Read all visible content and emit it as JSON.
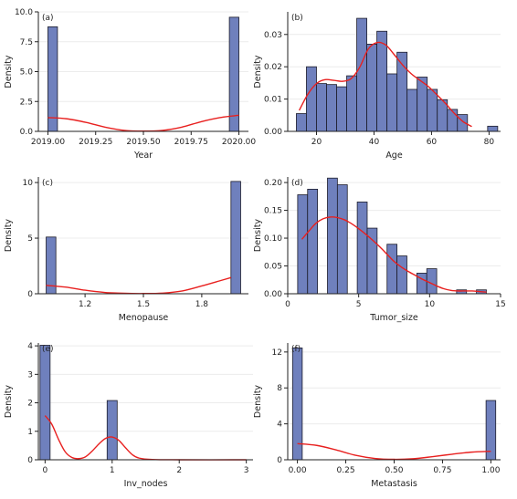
{
  "chart_data": [
    {
      "id": "a",
      "tag": "(a)",
      "type": "bar",
      "xlabel": "Year",
      "ylabel": "Density",
      "xlim": [
        2018.95,
        2020.05
      ],
      "ylim": [
        0,
        10
      ],
      "xticks": [
        2019.0,
        2019.25,
        2019.5,
        2019.75,
        2020.0
      ],
      "xtick_labels": [
        "2019.00",
        "2019.25",
        "2019.50",
        "2019.75",
        "2020.00"
      ],
      "yticks": [
        0,
        2.5,
        5,
        7.5,
        10
      ],
      "ytick_labels": [
        "0.0",
        "2.5",
        "5.0",
        "7.5",
        "10.0"
      ],
      "bars": [
        {
          "x0": 2019.0,
          "x1": 2019.05,
          "y": 8.75
        },
        {
          "x0": 2019.95,
          "x1": 2020.0,
          "y": 9.55
        }
      ],
      "kde": [
        [
          2019.0,
          1.15
        ],
        [
          2019.1,
          1.05
        ],
        [
          2019.2,
          0.75
        ],
        [
          2019.3,
          0.35
        ],
        [
          2019.4,
          0.08
        ],
        [
          2019.5,
          0.02
        ],
        [
          2019.6,
          0.08
        ],
        [
          2019.7,
          0.35
        ],
        [
          2019.8,
          0.8
        ],
        [
          2019.9,
          1.15
        ],
        [
          2020.0,
          1.35
        ]
      ]
    },
    {
      "id": "b",
      "tag": "(b)",
      "type": "bar",
      "xlabel": "Age",
      "ylabel": "Density",
      "xlim": [
        10,
        84
      ],
      "ylim": [
        0,
        0.037
      ],
      "xticks": [
        20,
        40,
        60,
        80
      ],
      "xtick_labels": [
        "20",
        "40",
        "60",
        "80"
      ],
      "yticks": [
        0,
        0.01,
        0.02,
        0.03
      ],
      "ytick_labels": [
        "0.00",
        "0.01",
        "0.02",
        "0.03"
      ],
      "bars": [
        {
          "x0": 13,
          "x1": 16.5,
          "y": 0.0055
        },
        {
          "x0": 16.5,
          "x1": 20,
          "y": 0.02
        },
        {
          "x0": 20,
          "x1": 23.5,
          "y": 0.0148
        },
        {
          "x0": 23.5,
          "x1": 27,
          "y": 0.0145
        },
        {
          "x0": 27,
          "x1": 30.5,
          "y": 0.0138
        },
        {
          "x0": 30.5,
          "x1": 34,
          "y": 0.0172
        },
        {
          "x0": 34,
          "x1": 37.5,
          "y": 0.035
        },
        {
          "x0": 37.5,
          "x1": 41,
          "y": 0.027
        },
        {
          "x0": 41,
          "x1": 44.5,
          "y": 0.031
        },
        {
          "x0": 44.5,
          "x1": 48,
          "y": 0.0178
        },
        {
          "x0": 48,
          "x1": 51.5,
          "y": 0.0245
        },
        {
          "x0": 51.5,
          "x1": 55,
          "y": 0.013
        },
        {
          "x0": 55,
          "x1": 58.5,
          "y": 0.0168
        },
        {
          "x0": 58.5,
          "x1": 62,
          "y": 0.013
        },
        {
          "x0": 62,
          "x1": 65.5,
          "y": 0.0098
        },
        {
          "x0": 65.5,
          "x1": 69,
          "y": 0.0068
        },
        {
          "x0": 69,
          "x1": 72.5,
          "y": 0.0052
        },
        {
          "x0": 72.5,
          "x1": 76,
          "y": 0
        },
        {
          "x0": 76,
          "x1": 79.5,
          "y": 0
        },
        {
          "x0": 79.5,
          "x1": 83,
          "y": 0.0016
        }
      ],
      "kde": [
        [
          14,
          0.0065
        ],
        [
          17,
          0.0115
        ],
        [
          20,
          0.0148
        ],
        [
          23,
          0.016
        ],
        [
          26,
          0.0158
        ],
        [
          29,
          0.0155
        ],
        [
          32,
          0.0163
        ],
        [
          35,
          0.0198
        ],
        [
          38,
          0.0255
        ],
        [
          41,
          0.0275
        ],
        [
          44,
          0.0268
        ],
        [
          47,
          0.0238
        ],
        [
          50,
          0.0205
        ],
        [
          53,
          0.0178
        ],
        [
          56,
          0.0158
        ],
        [
          59,
          0.0138
        ],
        [
          62,
          0.0112
        ],
        [
          65,
          0.0085
        ],
        [
          68,
          0.0055
        ],
        [
          71,
          0.003
        ],
        [
          74,
          0.0015
        ]
      ]
    },
    {
      "id": "c",
      "tag": "(c)",
      "type": "bar",
      "xlabel": "Menopause",
      "ylabel": "Density",
      "xlim": [
        0.96,
        2.04
      ],
      "ylim": [
        0,
        10.5
      ],
      "xticks": [
        1.2,
        1.5,
        1.8
      ],
      "xtick_labels": [
        "1.2",
        "1.5",
        "1.8"
      ],
      "yticks": [
        0,
        5,
        10
      ],
      "ytick_labels": [
        "0",
        "5",
        "10"
      ],
      "bars": [
        {
          "x0": 1.0,
          "x1": 1.05,
          "y": 5.1
        },
        {
          "x0": 1.95,
          "x1": 2.0,
          "y": 10.1
        }
      ],
      "kde": [
        [
          1.0,
          0.75
        ],
        [
          1.1,
          0.6
        ],
        [
          1.2,
          0.32
        ],
        [
          1.3,
          0.12
        ],
        [
          1.4,
          0.04
        ],
        [
          1.5,
          0.02
        ],
        [
          1.6,
          0.06
        ],
        [
          1.7,
          0.25
        ],
        [
          1.8,
          0.7
        ],
        [
          1.9,
          1.2
        ],
        [
          1.95,
          1.45
        ]
      ]
    },
    {
      "id": "d",
      "tag": "(d)",
      "type": "bar",
      "xlabel": "Tumor_size",
      "ylabel": "Density",
      "xlim": [
        0,
        15
      ],
      "ylim": [
        0,
        0.21
      ],
      "xticks": [
        0,
        5,
        10,
        15
      ],
      "xtick_labels": [
        "0",
        "5",
        "10",
        "15"
      ],
      "yticks": [
        0,
        0.05,
        0.1,
        0.15,
        0.2
      ],
      "ytick_labels": [
        "0.00",
        "0.05",
        "0.10",
        "0.15",
        "0.20"
      ],
      "bars": [
        {
          "x0": 0.7,
          "x1": 1.4,
          "y": 0.178
        },
        {
          "x0": 1.4,
          "x1": 2.1,
          "y": 0.188
        },
        {
          "x0": 2.1,
          "x1": 2.8,
          "y": 0
        },
        {
          "x0": 2.8,
          "x1": 3.5,
          "y": 0.208
        },
        {
          "x0": 3.5,
          "x1": 4.2,
          "y": 0.196
        },
        {
          "x0": 4.2,
          "x1": 4.9,
          "y": 0
        },
        {
          "x0": 4.9,
          "x1": 5.6,
          "y": 0.165
        },
        {
          "x0": 5.6,
          "x1": 6.3,
          "y": 0.118
        },
        {
          "x0": 6.3,
          "x1": 7.0,
          "y": 0
        },
        {
          "x0": 7.0,
          "x1": 7.7,
          "y": 0.089
        },
        {
          "x0": 7.7,
          "x1": 8.4,
          "y": 0.068
        },
        {
          "x0": 8.4,
          "x1": 9.1,
          "y": 0
        },
        {
          "x0": 9.1,
          "x1": 9.8,
          "y": 0.037
        },
        {
          "x0": 9.8,
          "x1": 10.5,
          "y": 0.045
        },
        {
          "x0": 10.5,
          "x1": 11.2,
          "y": 0
        },
        {
          "x0": 11.2,
          "x1": 11.9,
          "y": 0
        },
        {
          "x0": 11.9,
          "x1": 12.6,
          "y": 0.007
        },
        {
          "x0": 12.6,
          "x1": 13.3,
          "y": 0
        },
        {
          "x0": 13.3,
          "x1": 14.0,
          "y": 0.007
        }
      ],
      "kde": [
        [
          1,
          0.098
        ],
        [
          1.5,
          0.113
        ],
        [
          2,
          0.127
        ],
        [
          2.5,
          0.135
        ],
        [
          3,
          0.138
        ],
        [
          3.5,
          0.137
        ],
        [
          4,
          0.133
        ],
        [
          4.5,
          0.126
        ],
        [
          5,
          0.117
        ],
        [
          5.5,
          0.107
        ],
        [
          6,
          0.096
        ],
        [
          6.5,
          0.084
        ],
        [
          7,
          0.071
        ],
        [
          7.5,
          0.058
        ],
        [
          8,
          0.048
        ],
        [
          8.5,
          0.04
        ],
        [
          9,
          0.033
        ],
        [
          9.5,
          0.026
        ],
        [
          10,
          0.02
        ],
        [
          10.5,
          0.014
        ],
        [
          11,
          0.009
        ],
        [
          11.5,
          0.006
        ],
        [
          12,
          0.005
        ],
        [
          12.5,
          0.005
        ],
        [
          13,
          0.005
        ],
        [
          13.5,
          0.004
        ],
        [
          14,
          0.003
        ]
      ]
    },
    {
      "id": "e",
      "tag": "(e)",
      "type": "bar",
      "xlabel": "Inv_nodes",
      "ylabel": "Density",
      "xlim": [
        -0.1,
        3.1
      ],
      "ylim": [
        0,
        4.1
      ],
      "xticks": [
        0,
        1,
        2,
        3
      ],
      "xtick_labels": [
        "0",
        "1",
        "2",
        "3"
      ],
      "yticks": [
        0,
        1,
        2,
        3,
        4
      ],
      "ytick_labels": [
        "0",
        "1",
        "2",
        "3",
        "4"
      ],
      "bars": [
        {
          "x0": -0.075,
          "x1": 0.075,
          "y": 4.02
        },
        {
          "x0": 0.925,
          "x1": 1.075,
          "y": 2.08
        }
      ],
      "kde": [
        [
          0,
          1.55
        ],
        [
          0.1,
          1.25
        ],
        [
          0.2,
          0.72
        ],
        [
          0.3,
          0.28
        ],
        [
          0.4,
          0.08
        ],
        [
          0.5,
          0.04
        ],
        [
          0.6,
          0.1
        ],
        [
          0.7,
          0.3
        ],
        [
          0.8,
          0.55
        ],
        [
          0.9,
          0.75
        ],
        [
          1.0,
          0.8
        ],
        [
          1.1,
          0.68
        ],
        [
          1.2,
          0.42
        ],
        [
          1.3,
          0.18
        ],
        [
          1.4,
          0.06
        ],
        [
          1.6,
          0.01
        ],
        [
          2.0,
          0.0
        ],
        [
          3.0,
          0.0
        ]
      ]
    },
    {
      "id": "f",
      "tag": "(f)",
      "type": "bar",
      "xlabel": "Metastasis",
      "ylabel": "Density",
      "xlim": [
        -0.05,
        1.05
      ],
      "ylim": [
        0,
        13
      ],
      "xticks": [
        0,
        0.25,
        0.5,
        0.75,
        1.0
      ],
      "xtick_labels": [
        "0.00",
        "0.25",
        "0.50",
        "0.75",
        "1.00"
      ],
      "yticks": [
        0,
        4,
        8,
        12
      ],
      "ytick_labels": [
        "0",
        "4",
        "8",
        "12"
      ],
      "bars": [
        {
          "x0": -0.025,
          "x1": 0.025,
          "y": 12.45
        },
        {
          "x0": 0.975,
          "x1": 1.025,
          "y": 6.6
        }
      ],
      "kde": [
        [
          0,
          1.8
        ],
        [
          0.1,
          1.6
        ],
        [
          0.2,
          1.1
        ],
        [
          0.3,
          0.5
        ],
        [
          0.4,
          0.15
        ],
        [
          0.5,
          0.05
        ],
        [
          0.6,
          0.12
        ],
        [
          0.7,
          0.35
        ],
        [
          0.8,
          0.62
        ],
        [
          0.9,
          0.85
        ],
        [
          1.0,
          0.95
        ]
      ]
    }
  ]
}
